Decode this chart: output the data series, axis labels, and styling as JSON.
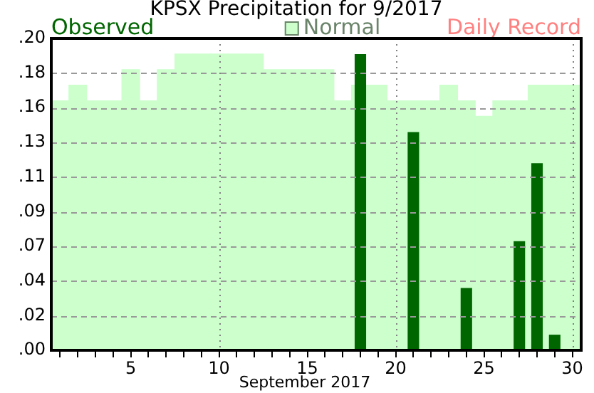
{
  "chart_data": {
    "type": "bar",
    "title": "KPSX Precipitation for 9/2017",
    "xlabel": "September 2017",
    "categories": [
      null,
      null,
      null,
      null,
      "5",
      null,
      null,
      null,
      null,
      "10",
      null,
      null,
      null,
      null,
      "15",
      null,
      null,
      null,
      null,
      "20",
      null,
      null,
      null,
      null,
      "25",
      null,
      null,
      null,
      null,
      "30"
    ],
    "series": [
      {
        "name": "Observed",
        "color": "#006600",
        "values": [
          0,
          0,
          0,
          0,
          0,
          0,
          0,
          0,
          0,
          0,
          0,
          0,
          0,
          0,
          0,
          0,
          0,
          0.19,
          0,
          0,
          0.14,
          0,
          0,
          0.04,
          0,
          0,
          0.07,
          0.12,
          0.01,
          0
        ]
      },
      {
        "name": "Normal",
        "color": "#ccffcc",
        "values": [
          0.16,
          0.17,
          0.16,
          0.16,
          0.18,
          0.16,
          0.18,
          0.19,
          0.19,
          0.19,
          0.19,
          0.19,
          0.18,
          0.18,
          0.18,
          0.18,
          0.16,
          0.17,
          0.17,
          0.16,
          0.16,
          0.16,
          0.17,
          0.16,
          0.15,
          0.16,
          0.16,
          0.17,
          0.17,
          0.17
        ]
      },
      {
        "name": "Daily Record",
        "color": "#ff8080",
        "values": [
          null,
          null,
          null,
          null,
          null,
          null,
          null,
          null,
          null,
          null,
          null,
          null,
          null,
          null,
          null,
          null,
          null,
          null,
          null,
          null,
          null,
          null,
          null,
          null,
          null,
          null,
          null,
          null,
          null,
          null
        ]
      }
    ],
    "ylim": [
      0,
      0.2
    ],
    "yticks": [
      {
        "value": 0,
        "label": ".00"
      },
      {
        "value": 0.0222,
        "label": ".02"
      },
      {
        "value": 0.0444,
        "label": ".04"
      },
      {
        "value": 0.0667,
        "label": ".07"
      },
      {
        "value": 0.0889,
        "label": ".09"
      },
      {
        "value": 0.1111,
        "label": ".11"
      },
      {
        "value": 0.1333,
        "label": ".13"
      },
      {
        "value": 0.1556,
        "label": ".16"
      },
      {
        "value": 0.1778,
        "label": ".18"
      },
      {
        "value": 0.2,
        "label": ".20"
      }
    ],
    "grid": "y",
    "line_style": "dashed",
    "legend": "top",
    "ref_lines": [
      {
        "axis": "x",
        "value": "10",
        "color": "#808080",
        "line_style": "dotted"
      },
      {
        "axis": "x",
        "value": "20",
        "color": "#808080",
        "line_style": "dotted"
      },
      {
        "axis": "x",
        "value": "30",
        "color": "#808080",
        "line_style": "dotted"
      }
    ]
  }
}
